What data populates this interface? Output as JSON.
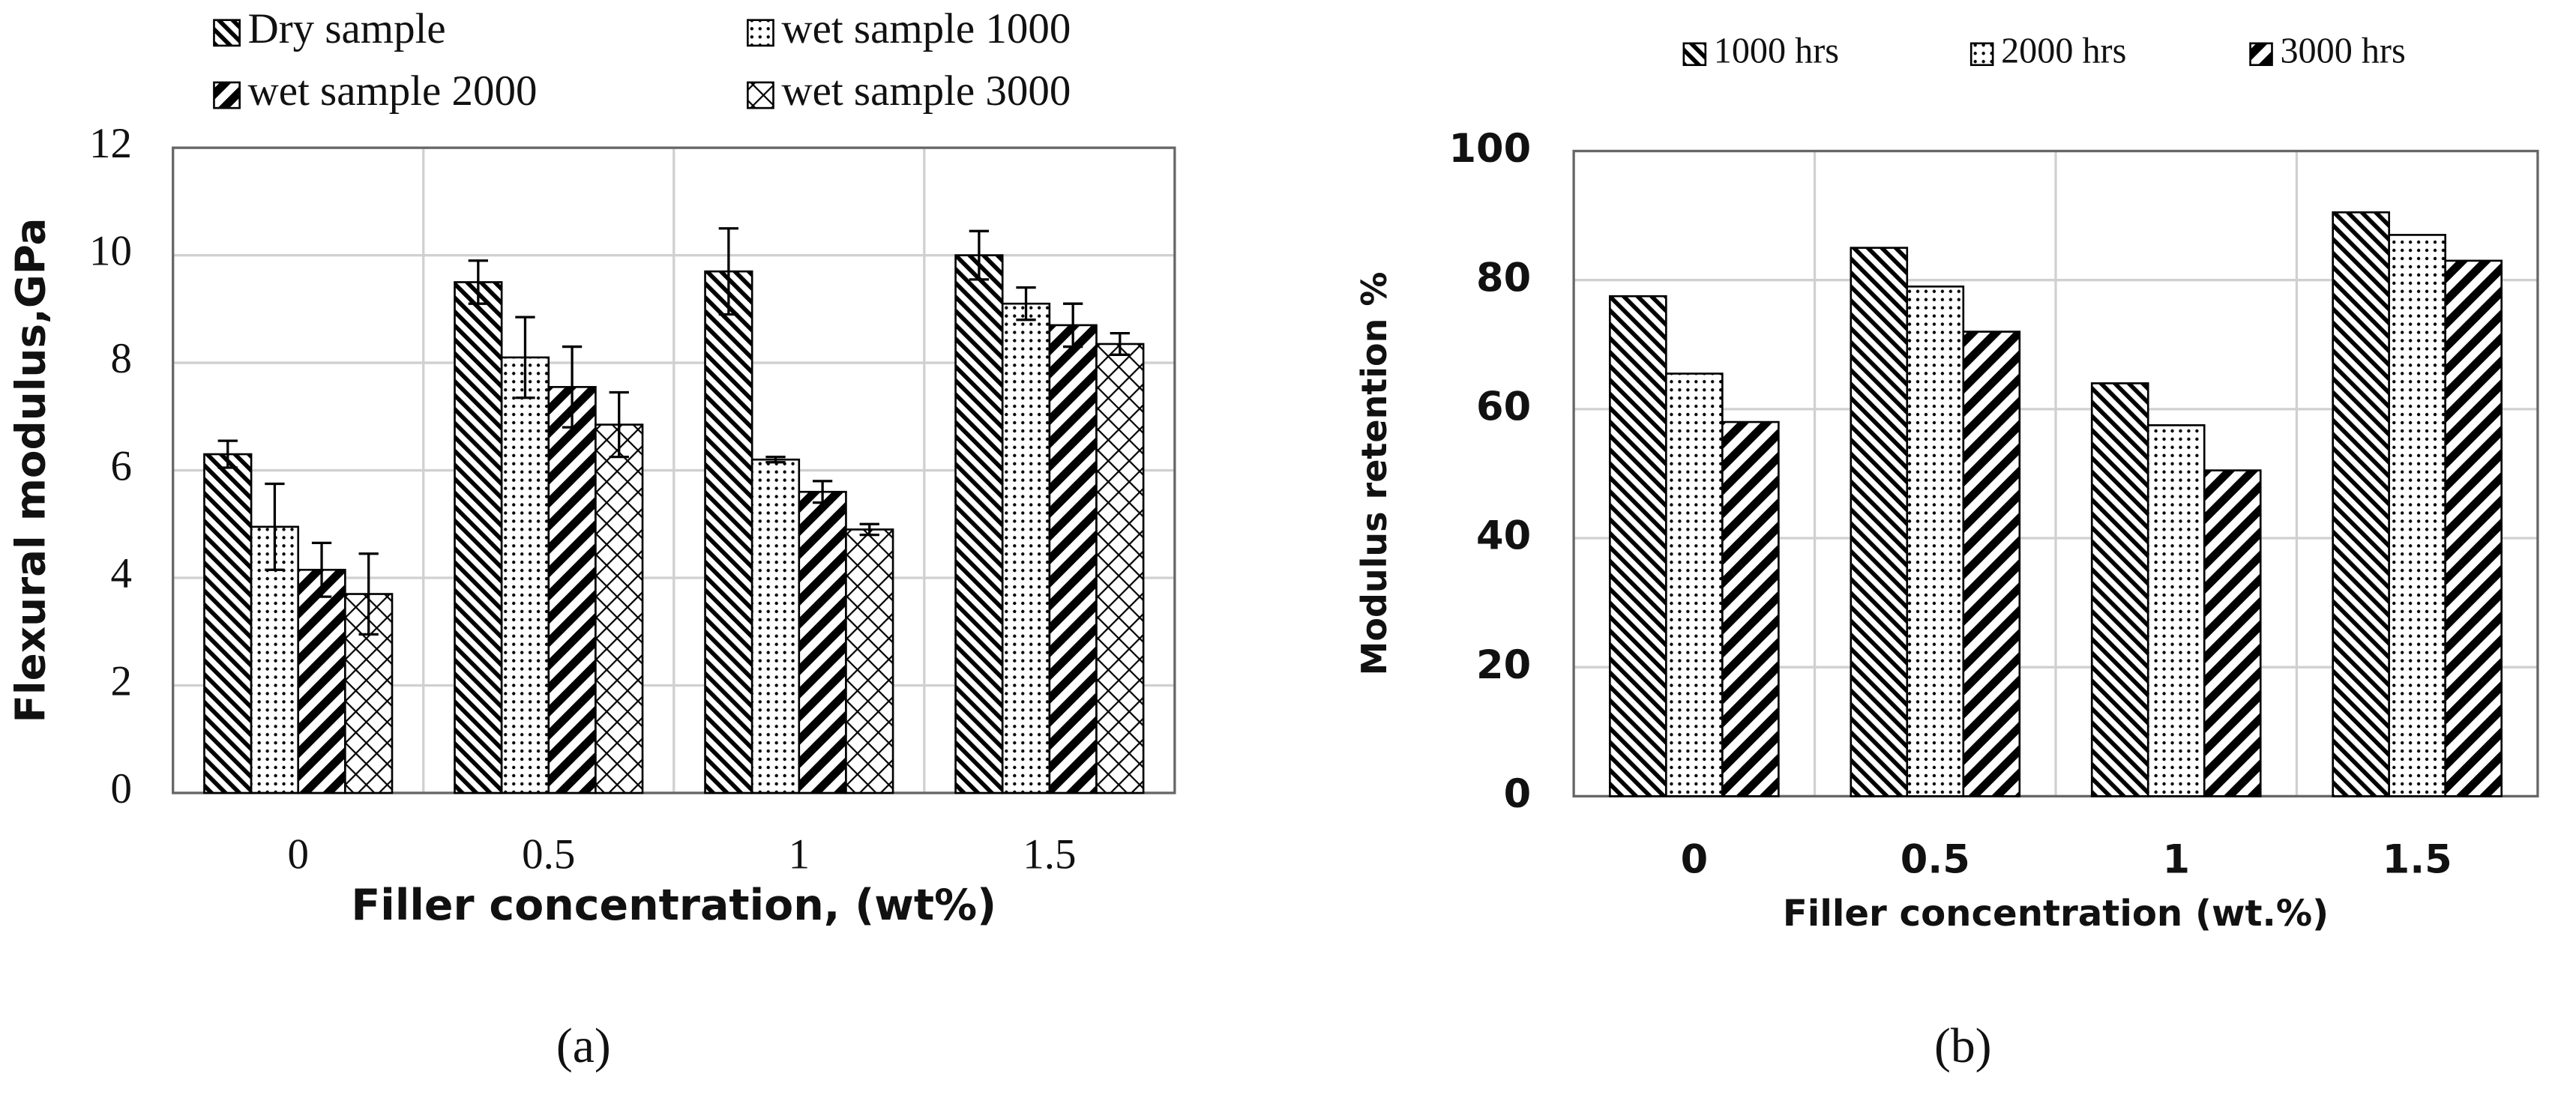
{
  "chart_data": [
    {
      "type": "bar",
      "caption": "(a)",
      "x_label": "Filler concentration, (wt%)",
      "y_label": "Flexural modulus,GPa",
      "categories": [
        "0",
        "0.5",
        "1",
        "1.5"
      ],
      "series": [
        {
          "name": "Dry sample",
          "color": "#000000",
          "pattern": "back-diagonal",
          "values": [
            6.3,
            9.5,
            9.7,
            10.0
          ],
          "errors": [
            0.25,
            0.4,
            0.8,
            0.45
          ]
        },
        {
          "name": "wet sample 1000",
          "color": "#000000",
          "pattern": "dots",
          "values": [
            4.95,
            8.1,
            6.2,
            9.1
          ],
          "errors": [
            0.8,
            0.75,
            0.05,
            0.3
          ]
        },
        {
          "name": "wet sample 2000",
          "color": "#000000",
          "pattern": "diagonal",
          "values": [
            4.15,
            7.55,
            5.6,
            8.7
          ],
          "errors": [
            0.5,
            0.75,
            0.2,
            0.4
          ]
        },
        {
          "name": "wet sample 3000",
          "color": "#000000",
          "pattern": "crosshatch",
          "values": [
            3.7,
            6.85,
            4.9,
            8.35
          ],
          "errors": [
            0.75,
            0.6,
            0.1,
            0.2
          ]
        }
      ],
      "ylim": [
        0,
        12
      ],
      "yticks": [
        0,
        2,
        4,
        6,
        8,
        10,
        12
      ],
      "grid": true,
      "legend": "top"
    },
    {
      "type": "bar",
      "caption": "(b)",
      "x_label": "Filler concentration (wt.%)",
      "y_label": "Modulus retention %",
      "categories": [
        "0",
        "0.5",
        "1",
        "1.5"
      ],
      "series": [
        {
          "name": "1000 hrs",
          "color": "#000000",
          "pattern": "back-diagonal",
          "values": [
            77.5,
            85,
            64,
            90.5
          ]
        },
        {
          "name": "2000 hrs",
          "color": "#000000",
          "pattern": "dots",
          "values": [
            65.5,
            79,
            57.5,
            87
          ]
        },
        {
          "name": "3000 hrs",
          "color": "#000000",
          "pattern": "diagonal",
          "values": [
            58,
            72,
            50.5,
            83
          ]
        }
      ],
      "ylim": [
        0,
        100
      ],
      "yticks": [
        0,
        20,
        40,
        60,
        80,
        100
      ],
      "grid": true,
      "legend": "top"
    }
  ]
}
